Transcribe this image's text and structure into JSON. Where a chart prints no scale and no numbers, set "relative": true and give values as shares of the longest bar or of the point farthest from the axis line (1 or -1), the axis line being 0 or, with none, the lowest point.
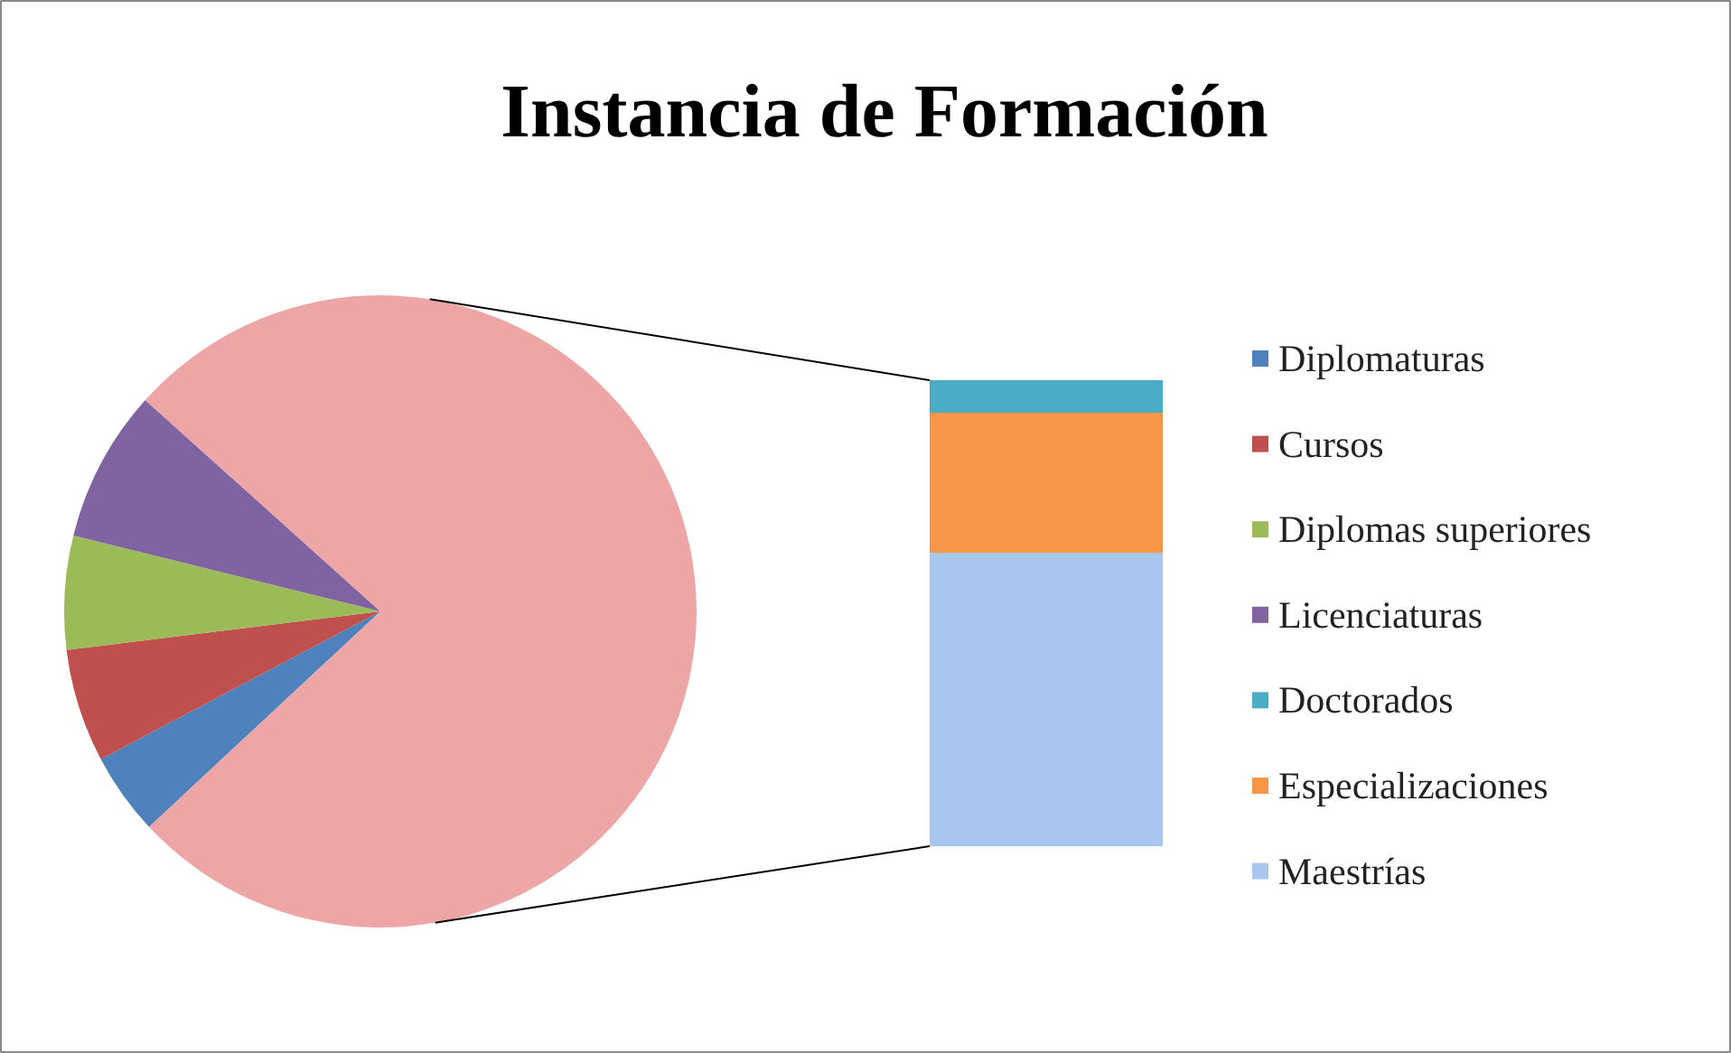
{
  "chart_data": [
    {
      "type": "pie",
      "title": "Instancia de Formación",
      "categories": [
        "Diplomaturas",
        "Cursos",
        "Diplomas superiores",
        "Licenciaturas",
        null
      ],
      "values": [
        4.2,
        5.8,
        5.8,
        7.8,
        76.4
      ],
      "colors": [
        "#4f81bd",
        "#c0504d",
        "#9bbb59",
        "#8064a2",
        "#eda5a5"
      ],
      "legend": "right"
    },
    {
      "type": "bar",
      "stacked": true,
      "relative": true,
      "categories": [
        null
      ],
      "series": [
        {
          "name": "Maestrías",
          "color": "#a9c6ee",
          "values": [
            0.63
          ]
        },
        {
          "name": "Especializaciones",
          "color": "#f79646",
          "values": [
            0.3
          ]
        },
        {
          "name": "Doctorados",
          "color": "#4bacc6",
          "values": [
            0.07
          ]
        }
      ],
      "legend": "right"
    }
  ]
}
